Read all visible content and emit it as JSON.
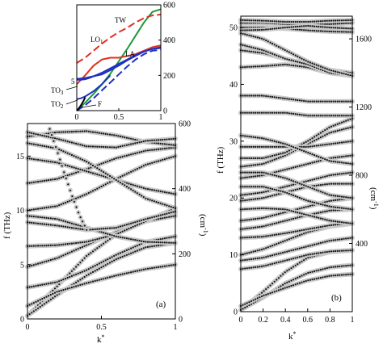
{
  "chart_data": [
    {
      "id": "inset",
      "type": "line",
      "xlim": [
        0,
        1
      ],
      "ylim": [
        0,
        600
      ],
      "xticks": [
        "0",
        "0.5",
        "1"
      ],
      "yticks_right": [
        "0",
        "200",
        "400",
        "600"
      ],
      "grid": false,
      "series": [
        {
          "name": "TW",
          "color": "#1a9a3a",
          "dash": false,
          "x": [
            0,
            0.1,
            0.2,
            0.3,
            0.4,
            0.5,
            0.6,
            0.7,
            0.8,
            0.9,
            1.0
          ],
          "y": [
            0,
            45,
            95,
            150,
            210,
            280,
            350,
            425,
            500,
            560,
            575
          ]
        },
        {
          "name": "LO1",
          "color": "#e03020",
          "dash": true,
          "x": [
            0,
            0.1,
            0.2,
            0.3,
            0.4,
            0.5,
            0.6,
            0.7,
            0.8,
            0.9,
            1.0
          ],
          "y": [
            270,
            300,
            340,
            380,
            415,
            445,
            470,
            500,
            525,
            540,
            545
          ]
        },
        {
          "name": "",
          "color": "#e03020",
          "dash": false,
          "x": [
            0,
            0.1,
            0.2,
            0.3,
            0.4,
            0.5,
            0.6,
            0.7,
            0.8,
            0.9,
            1.0
          ],
          "y": [
            150,
            200,
            255,
            290,
            300,
            300,
            310,
            320,
            340,
            360,
            370
          ]
        },
        {
          "name": "LA",
          "color": "#2030c0",
          "dash": true,
          "x": [
            0,
            0.1,
            0.2,
            0.3,
            0.4,
            0.5,
            0.6,
            0.7,
            0.8,
            0.9,
            1.0
          ],
          "y": [
            0,
            30,
            70,
            115,
            160,
            205,
            250,
            290,
            320,
            340,
            345
          ]
        },
        {
          "name": "",
          "color": "#2030c0",
          "dash": false,
          "x": [
            0,
            0.1,
            0.2,
            0.3,
            0.4,
            0.5,
            0.6,
            0.7,
            0.8,
            0.9,
            1.0
          ],
          "y": [
            180,
            185,
            195,
            205,
            230,
            255,
            285,
            310,
            335,
            350,
            355
          ]
        },
        {
          "name": "TO3",
          "color": "#2030c0",
          "dash": false,
          "x": [
            0,
            0.05,
            0.1,
            0.15,
            0.2,
            0.3,
            0.4,
            0.5,
            0.6,
            0.7,
            0.8,
            0.9,
            1.0
          ],
          "y": [
            175,
            175,
            178,
            185,
            195,
            215,
            240,
            265,
            290,
            315,
            335,
            350,
            360
          ]
        },
        {
          "name": "TO2",
          "color": "#2030c0",
          "dash": false,
          "x": [
            0,
            0.05,
            0.1,
            0.2,
            0.3,
            0.4
          ],
          "y": [
            65,
            70,
            80,
            110,
            150,
            200
          ]
        },
        {
          "name": "F",
          "color": "#000000",
          "dash": false,
          "x": [
            0,
            0.02,
            0.05,
            0.08,
            0.1
          ],
          "y": [
            0,
            10,
            30,
            55,
            75
          ]
        }
      ],
      "annotations": [
        "TW",
        "LO1",
        "LA",
        "TO3",
        "TO2",
        "F",
        "5"
      ]
    },
    {
      "id": "panel-a",
      "type": "scatter",
      "panel_label": "(a)",
      "xlabel": "k*",
      "ylabel_left": "f (THz)",
      "ylabel_right": "(cm-1)",
      "xlim": [
        0,
        1
      ],
      "ylim_left": [
        0,
        18
      ],
      "ylim_right": [
        0,
        600
      ],
      "xticks": [
        "0",
        "0.5",
        "1"
      ],
      "yticks_left": [
        "0",
        "5",
        "10",
        "15"
      ],
      "yticks_right": [
        "0",
        "200",
        "400",
        "600"
      ],
      "grid": false,
      "branches": [
        {
          "x": [
            0,
            0.2,
            0.4,
            0.6,
            0.8,
            1.0
          ],
          "y": [
            0.3,
            3.0,
            5.8,
            7.8,
            9.2,
            9.8
          ]
        },
        {
          "x": [
            0,
            0.2,
            0.4,
            0.6,
            0.8,
            1.0
          ],
          "y": [
            0.3,
            2.2,
            4.0,
            5.5,
            6.6,
            7.0
          ]
        },
        {
          "x": [
            0,
            0.2,
            0.4,
            0.6,
            0.8,
            1.0
          ],
          "y": [
            1.2,
            2.5,
            3.3,
            4.0,
            4.6,
            5.0
          ]
        },
        {
          "x": [
            0,
            0.2,
            0.4,
            0.6,
            0.8,
            1.0
          ],
          "y": [
            2.9,
            3.4,
            4.5,
            5.9,
            7.1,
            7.6
          ]
        },
        {
          "x": [
            0,
            0.2,
            0.4,
            0.6,
            0.8,
            1.0
          ],
          "y": [
            4.8,
            5.6,
            6.8,
            8.0,
            9.0,
            9.5
          ]
        },
        {
          "x": [
            0,
            0.2,
            0.4,
            0.6,
            0.8,
            1.0
          ],
          "y": [
            6.7,
            6.8,
            7.1,
            7.8,
            9.0,
            10.2
          ]
        },
        {
          "x": [
            0,
            0.2,
            0.4,
            0.6,
            0.8,
            1.0
          ],
          "y": [
            9.5,
            9.2,
            8.4,
            7.6,
            7.1,
            7.0
          ]
        },
        {
          "x": [
            0,
            0.2,
            0.4,
            0.6,
            0.8,
            1.0
          ],
          "y": [
            10.0,
            10.4,
            11.5,
            12.9,
            14.2,
            15.0
          ]
        },
        {
          "x": [
            0,
            0.2,
            0.4,
            0.6,
            0.8,
            1.0
          ],
          "y": [
            12.5,
            12.9,
            13.8,
            14.8,
            15.5,
            15.8
          ]
        },
        {
          "x": [
            0,
            0.2,
            0.4,
            0.6,
            0.8,
            1.0
          ],
          "y": [
            14.8,
            14.4,
            13.6,
            12.8,
            12.0,
            11.5
          ]
        },
        {
          "x": [
            0,
            0.2,
            0.4,
            0.6,
            0.8,
            1.0
          ],
          "y": [
            16.2,
            15.7,
            14.5,
            12.8,
            11.1,
            10.2
          ]
        },
        {
          "x": [
            0,
            0.2,
            0.4,
            0.6,
            0.8,
            1.0
          ],
          "y": [
            16.8,
            17.2,
            17.3,
            16.9,
            16.3,
            16.0
          ]
        },
        {
          "x": [
            0,
            0.2,
            0.4,
            0.6,
            0.8,
            1.0
          ],
          "y": [
            17.2,
            16.6,
            15.9,
            15.8,
            16.4,
            16.6
          ]
        },
        {
          "x": [
            0,
            0.2,
            0.4,
            0.6,
            0.8,
            1.0
          ],
          "y": [
            8.9,
            8.6,
            8.2,
            8.4,
            9.2,
            9.9
          ]
        },
        {
          "x": [
            0.15,
            0.2,
            0.25,
            0.3,
            0.35,
            0.4
          ],
          "y": [
            17.5,
            15.5,
            13.4,
            11.4,
            9.6,
            8.2
          ]
        }
      ]
    },
    {
      "id": "panel-b",
      "type": "scatter",
      "panel_label": "(b)",
      "xlabel": "k*",
      "ylabel_left": "f (THz)",
      "ylabel_right": "(cm-1)",
      "xlim": [
        0,
        1
      ],
      "ylim_left": [
        0,
        52
      ],
      "ylim_right": [
        0,
        1733
      ],
      "xticks": [
        "0",
        "0.2",
        "0.4",
        "0.6",
        "0.8",
        "1"
      ],
      "yticks_left": [
        "0",
        "10",
        "20",
        "30",
        "40",
        "50"
      ],
      "yticks_right": [
        "400",
        "800",
        "1200",
        "1600"
      ],
      "grid": false,
      "branches": [
        {
          "x": [
            0,
            0.2,
            0.4,
            0.6,
            0.8,
            1.0
          ],
          "y": [
            0.3,
            3.5,
            7.0,
            9.5,
            10.5,
            10.8
          ]
        },
        {
          "x": [
            0,
            0.2,
            0.4,
            0.6,
            0.8,
            1.0
          ],
          "y": [
            0.3,
            2.5,
            5.0,
            6.8,
            7.8,
            8.2
          ]
        },
        {
          "x": [
            0,
            0.2,
            0.4,
            0.6,
            0.8,
            1.0
          ],
          "y": [
            1.0,
            2.8,
            4.2,
            5.5,
            6.3,
            6.6
          ]
        },
        {
          "x": [
            0,
            0.2,
            0.4,
            0.6,
            0.8,
            1.0
          ],
          "y": [
            7.5,
            8.0,
            9.0,
            10.0,
            10.6,
            10.8
          ]
        },
        {
          "x": [
            0,
            0.2,
            0.4,
            0.6,
            0.8,
            1.0
          ],
          "y": [
            9.0,
            9.5,
            10.5,
            11.5,
            12.5,
            13.0
          ]
        },
        {
          "x": [
            0,
            0.2,
            0.4,
            0.6,
            0.8,
            1.0
          ],
          "y": [
            10.0,
            11.0,
            12.5,
            14.0,
            15.0,
            15.5
          ]
        },
        {
          "x": [
            0,
            0.2,
            0.4,
            0.6,
            0.8,
            1.0
          ],
          "y": [
            13.0,
            13.2,
            13.8,
            14.5,
            15.2,
            15.6
          ]
        },
        {
          "x": [
            0,
            0.2,
            0.4,
            0.6,
            0.8,
            1.0
          ],
          "y": [
            14.5,
            15.0,
            16.0,
            17.0,
            17.8,
            18.0
          ]
        },
        {
          "x": [
            0,
            0.2,
            0.4,
            0.6,
            0.8,
            1.0
          ],
          "y": [
            16.0,
            16.5,
            17.5,
            18.5,
            19.5,
            20.0
          ]
        },
        {
          "x": [
            0,
            0.2,
            0.4,
            0.6,
            0.8,
            1.0
          ],
          "y": [
            18.0,
            18.2,
            18.0,
            17.0,
            16.0,
            15.5
          ]
        },
        {
          "x": [
            0,
            0.2,
            0.4,
            0.6,
            0.8,
            1.0
          ],
          "y": [
            19.5,
            20.0,
            21.0,
            22.0,
            22.5,
            22.5
          ]
        },
        {
          "x": [
            0,
            0.2,
            0.4,
            0.6,
            0.8,
            1.0
          ],
          "y": [
            20.5,
            21.0,
            22.0,
            23.0,
            24.0,
            24.5
          ]
        },
        {
          "x": [
            0,
            0.2,
            0.4,
            0.6,
            0.8,
            1.0
          ],
          "y": [
            22.0,
            22.0,
            21.0,
            19.5,
            18.5,
            18.0
          ]
        },
        {
          "x": [
            0,
            0.2,
            0.4,
            0.6,
            0.8,
            1.0
          ],
          "y": [
            23.5,
            24.0,
            25.0,
            26.0,
            27.0,
            27.5
          ]
        },
        {
          "x": [
            0,
            0.2,
            0.4,
            0.6,
            0.8,
            1.0
          ],
          "y": [
            24.5,
            24.5,
            23.5,
            22.0,
            20.5,
            20.0
          ]
        },
        {
          "x": [
            0,
            0.2,
            0.4,
            0.6,
            0.8,
            1.0
          ],
          "y": [
            25.5,
            26.0,
            27.5,
            29.5,
            31.5,
            32.5
          ]
        },
        {
          "x": [
            0,
            0.2,
            0.4,
            0.6,
            0.8,
            1.0
          ],
          "y": [
            27.0,
            27.0,
            28.0,
            30.0,
            32.5,
            34.0
          ]
        },
        {
          "x": [
            0,
            0.2,
            0.4,
            0.6,
            0.8,
            1.0
          ],
          "y": [
            29.0,
            29.0,
            29.0,
            29.0,
            29.5,
            30.0
          ]
        },
        {
          "x": [
            0,
            0.2,
            0.4,
            0.6,
            0.8,
            1.0
          ],
          "y": [
            31.0,
            30.5,
            29.5,
            28.0,
            26.5,
            26.0
          ]
        },
        {
          "x": [
            0,
            0.2,
            0.4,
            0.6,
            0.8,
            1.0
          ],
          "y": [
            35.0,
            35.0,
            35.0,
            34.5,
            34.5,
            34.5
          ]
        },
        {
          "x": [
            0,
            0.2,
            0.4,
            0.6,
            0.8,
            1.0
          ],
          "y": [
            38.0,
            38.0,
            37.5,
            37.0,
            37.0,
            37.0
          ]
        },
        {
          "x": [
            0,
            0.2,
            0.4,
            0.6,
            0.8,
            1.0
          ],
          "y": [
            43.0,
            43.2,
            43.5,
            43.0,
            42.0,
            41.5
          ]
        },
        {
          "x": [
            0,
            0.2,
            0.4,
            0.6,
            0.8,
            1.0
          ],
          "y": [
            46.0,
            45.5,
            44.5,
            43.5,
            42.5,
            42.0
          ]
        },
        {
          "x": [
            0,
            0.2,
            0.4,
            0.6,
            0.8,
            1.0
          ],
          "y": [
            47.0,
            46.0,
            44.5,
            43.5,
            42.0,
            41.5
          ]
        },
        {
          "x": [
            0,
            0.2,
            0.4,
            0.6,
            0.8,
            1.0
          ],
          "y": [
            49.0,
            48.0,
            46.0,
            44.0,
            42.5,
            41.5
          ]
        },
        {
          "x": [
            0,
            0.2,
            0.4,
            0.6,
            0.8,
            1.0
          ],
          "y": [
            50.0,
            50.0,
            49.8,
            49.5,
            49.3,
            49.2
          ]
        },
        {
          "x": [
            0,
            0.2,
            0.4,
            0.6,
            0.8,
            1.0
          ],
          "y": [
            50.8,
            50.8,
            50.6,
            50.5,
            50.6,
            50.8
          ]
        },
        {
          "x": [
            0,
            0.2,
            0.4,
            0.6,
            0.8,
            1.0
          ],
          "y": [
            51.3,
            51.2,
            51.0,
            51.0,
            51.2,
            51.3
          ]
        },
        {
          "x": [
            0,
            0.2,
            0.4,
            0.6,
            0.8,
            1.0
          ],
          "y": [
            49.5,
            49.6,
            50.0,
            50.3,
            50.0,
            49.8
          ]
        }
      ]
    }
  ]
}
